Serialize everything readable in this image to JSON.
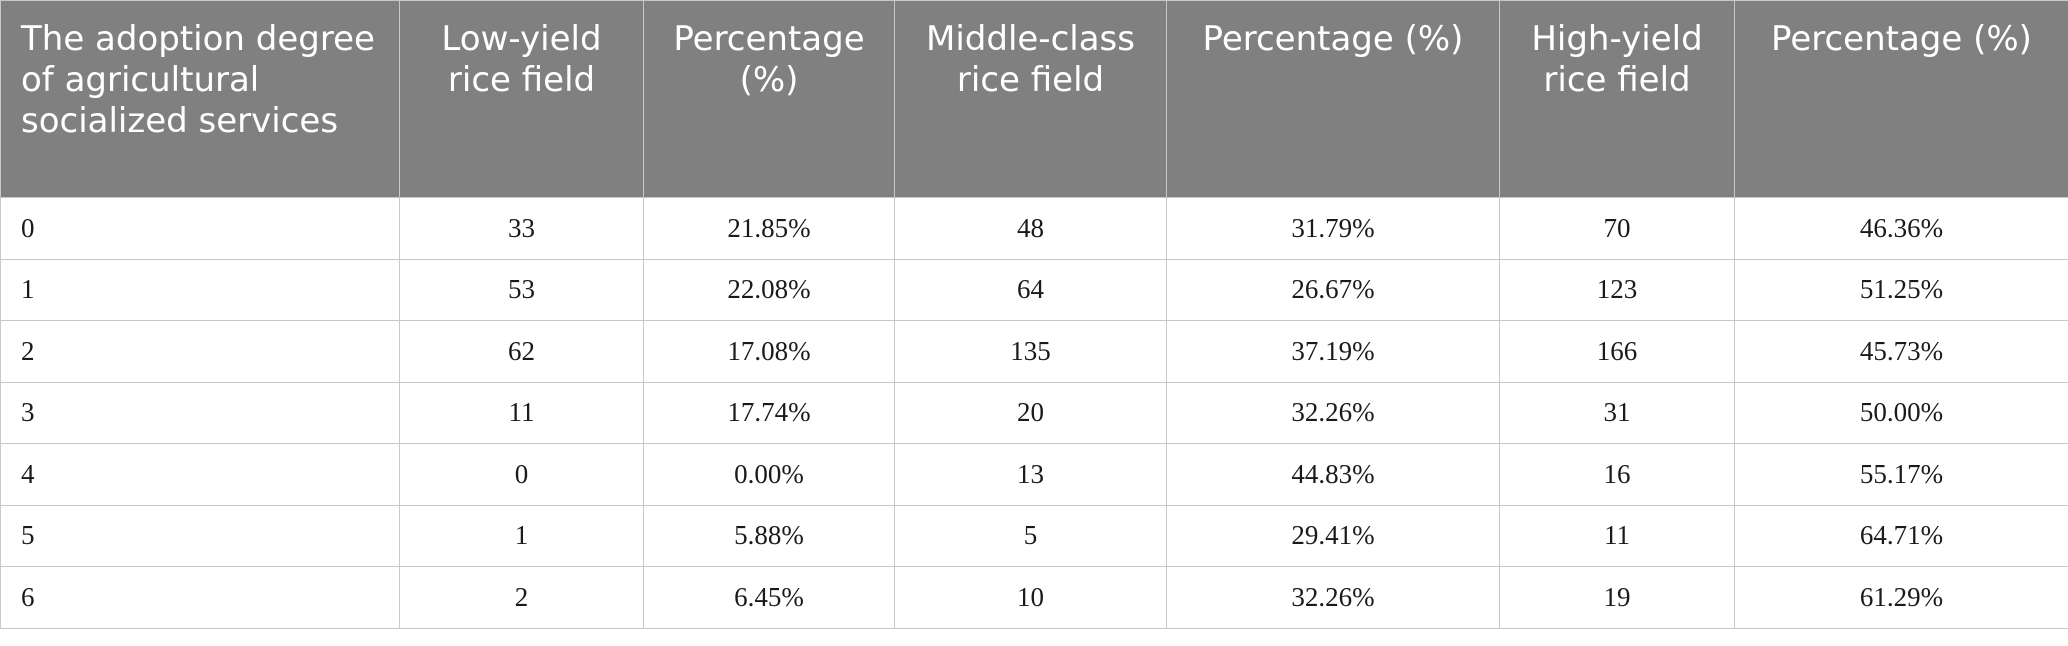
{
  "table": {
    "headers": [
      "The adoption degree of agricultural socialized services",
      "Low-yield rice field",
      "Percentage (%)",
      "Middle-class rice field",
      "Percentage (%)",
      "High-yield rice field",
      "Percentage (%)"
    ],
    "rows": [
      [
        "0",
        "33",
        "21.85%",
        "48",
        "31.79%",
        "70",
        "46.36%"
      ],
      [
        "1",
        "53",
        "22.08%",
        "64",
        "26.67%",
        "123",
        "51.25%"
      ],
      [
        "2",
        "62",
        "17.08%",
        "135",
        "37.19%",
        "166",
        "45.73%"
      ],
      [
        "3",
        "11",
        "17.74%",
        "20",
        "32.26%",
        "31",
        "50.00%"
      ],
      [
        "4",
        "0",
        "0.00%",
        "13",
        "44.83%",
        "16",
        "55.17%"
      ],
      [
        "5",
        "1",
        "5.88%",
        "5",
        "29.41%",
        "11",
        "64.71%"
      ],
      [
        "6",
        "2",
        "6.45%",
        "10",
        "32.26%",
        "19",
        "61.29%"
      ]
    ]
  },
  "colors": {
    "header_background": "#808080",
    "header_text": "#ffffff",
    "grid_line": "#c8c8c8"
  }
}
